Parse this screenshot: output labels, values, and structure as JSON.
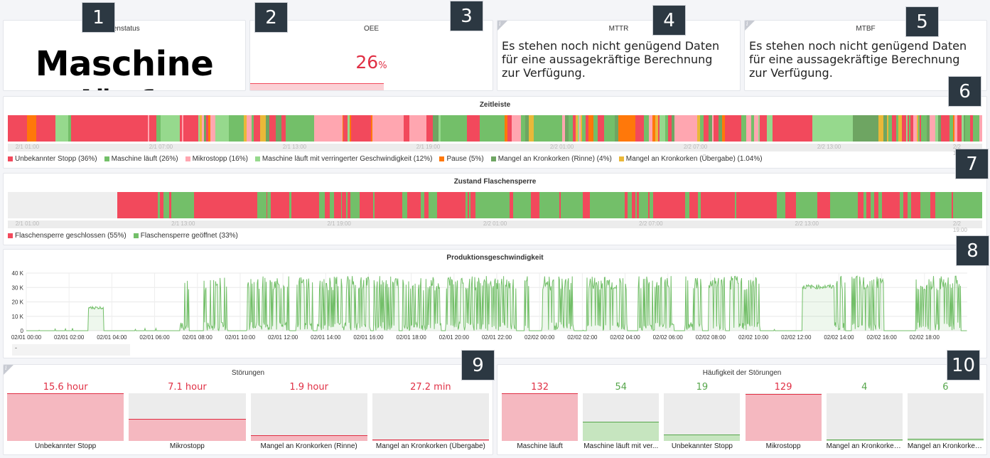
{
  "badges": [
    "1",
    "2",
    "3",
    "4",
    "5",
    "6",
    "7",
    "8",
    "9",
    "10"
  ],
  "panels": {
    "machine_status": {
      "title": "nenstatus",
      "value": "Maschine läuft"
    },
    "oee": {
      "title": "OEE",
      "value": "26",
      "unit": "%",
      "progress": 0.26
    },
    "mttr": {
      "title": "MTTR",
      "info": "i",
      "message": "Es stehen noch nicht genügend Daten für eine aussagekräftige Berechnung zur Verfügung."
    },
    "mtbf": {
      "title": "MTBF",
      "info": "i",
      "message": "Es stehen noch nicht genügend Daten für eine aussagekräftige Berechnung zur Verfügung."
    },
    "zeitleiste": {
      "title": "Zeitleiste",
      "axis": [
        "2/1 01:00",
        "2/1 07:00",
        "2/1 13:00",
        "2/1 19:00",
        "2/2 01:00",
        "2/2 07:00",
        "2/2 13:00",
        "2/2 19:00"
      ],
      "legend": [
        {
          "label": "Unbekannter Stopp (36%)",
          "color": "#f2495c"
        },
        {
          "label": "Maschine läuft (26%)",
          "color": "#73bf69"
        },
        {
          "label": "Mikrostopp (16%)",
          "color": "#ffa6b0"
        },
        {
          "label": "Maschine läuft mit verringerter Geschwindigkeit (12%)",
          "color": "#96d98d"
        },
        {
          "label": "Pause (5%)",
          "color": "#ff780a"
        },
        {
          "label": "Mangel an Kronkorken (Rinne) (4%)",
          "color": "#6ea562"
        },
        {
          "label": "Mangel an Kronkorken (Übergabe) (1.04%)",
          "color": "#eab839"
        }
      ]
    },
    "flaschensperre": {
      "title": "Zustand Flaschensperre",
      "axis": [
        "2/1 01:00",
        "2/1 13:00",
        "2/1 19:00",
        "2/2 01:00",
        "2/2 07:00",
        "2/2 13:00",
        "2/2 19:00"
      ],
      "legend": [
        {
          "label": "Flaschensperre geschlossen (55%)",
          "color": "#f2495c"
        },
        {
          "label": "Flaschensperre geöffnet (33%)",
          "color": "#73bf69"
        }
      ]
    },
    "produktion": {
      "title": "Produktionsgeschwindigkeit",
      "legend_mark": "-"
    },
    "stoerungen": {
      "title": "Störungen",
      "info": "i",
      "items": [
        {
          "value": "15.6 hour",
          "label": "Unbekannter Stopp",
          "level": 1.0,
          "color": "red"
        },
        {
          "value": "7.1 hour",
          "label": "Mikrostopp",
          "level": 0.46,
          "color": "red"
        },
        {
          "value": "1.9 hour",
          "label": "Mangel an Kronkorken (Rinne)",
          "level": 0.12,
          "color": "red"
        },
        {
          "value": "27.2 min",
          "label": "Mangel an Kronkorken (Übergabe)",
          "level": 0.03,
          "color": "red"
        }
      ]
    },
    "haeufigkeit": {
      "title": "Häufigkeit der Störungen",
      "items": [
        {
          "value": "132",
          "label": "Maschine läuft",
          "level": 1.0,
          "color": "red"
        },
        {
          "value": "54",
          "label": "Maschine läuft mit ver...",
          "level": 0.41,
          "color": "green"
        },
        {
          "value": "19",
          "label": "Unbekannter Stopp",
          "level": 0.14,
          "color": "green"
        },
        {
          "value": "129",
          "label": "Mikrostopp",
          "level": 0.98,
          "color": "red"
        },
        {
          "value": "4",
          "label": "Mangel an Kronkorken...",
          "level": 0.03,
          "color": "green"
        },
        {
          "value": "6",
          "label": "Mangel an Kronkorken...",
          "level": 0.04,
          "color": "green"
        }
      ]
    }
  },
  "chart_data": {
    "type": "line",
    "title": "Produktionsgeschwindigkeit",
    "xlabel": "",
    "ylabel": "",
    "y_ticks": [
      "0",
      "10 K",
      "20 K",
      "30 K",
      "40 K"
    ],
    "ylim": [
      0,
      40000
    ],
    "x_ticks": [
      "02/01 00:00",
      "02/01 02:00",
      "02/01 04:00",
      "02/01 06:00",
      "02/01 08:00",
      "02/01 10:00",
      "02/01 12:00",
      "02/01 14:00",
      "02/01 16:00",
      "02/01 18:00",
      "02/01 20:00",
      "02/01 22:00",
      "02/02 00:00",
      "02/02 02:00",
      "02/02 04:00",
      "02/02 06:00",
      "02/02 08:00",
      "02/02 10:00",
      "02/02 12:00",
      "02/02 14:00",
      "02/02 16:00",
      "02/02 18:00"
    ],
    "color": "#73bf69",
    "active_periods_h": [
      [
        2.9,
        3.6
      ],
      [
        7.2,
        7.6
      ],
      [
        8.3,
        9.4
      ],
      [
        10.3,
        12.3
      ],
      [
        12.6,
        13.4
      ],
      [
        13.6,
        16.1
      ],
      [
        16.2,
        17.4
      ],
      [
        17.6,
        19.4
      ],
      [
        19.6,
        22.9
      ],
      [
        23.3,
        23.5
      ],
      [
        24.1,
        25.6
      ],
      [
        26.2,
        28.1
      ],
      [
        28.6,
        30.3
      ],
      [
        30.8,
        31.6
      ],
      [
        31.9,
        32.7
      ],
      [
        32.9,
        34.3
      ],
      [
        36.4,
        38.3
      ],
      [
        38.6,
        40.1
      ],
      [
        41.6,
        43.7
      ]
    ],
    "flat_periods_h": [
      [
        36.3,
        37.8
      ]
    ],
    "active_range": [
      5000,
      38000
    ],
    "flat_range": [
      29000,
      32000
    ]
  }
}
